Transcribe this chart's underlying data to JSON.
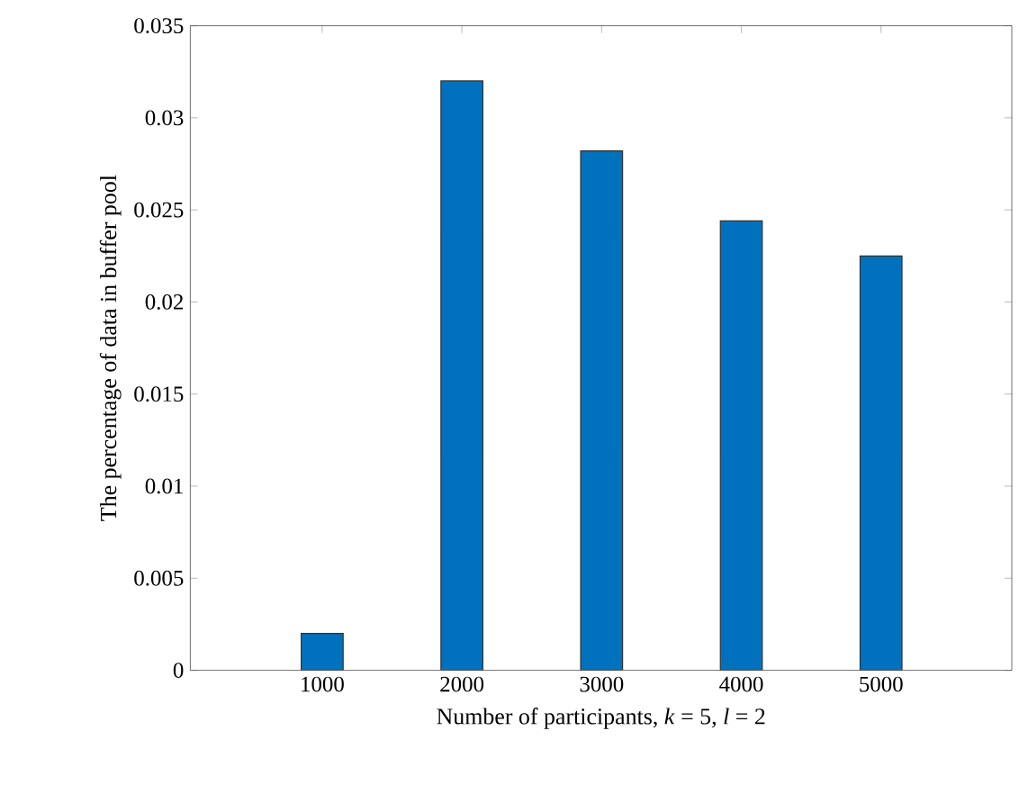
{
  "chart_data": {
    "type": "bar",
    "xlabel": "Number of participants, *k* = 5, *l* = 2",
    "ylabel": "The percentage of data in buffer pool",
    "categories": [
      "1000",
      "2000",
      "3000",
      "4000",
      "5000"
    ],
    "values": [
      0.002,
      0.032,
      0.0282,
      0.0244,
      0.0225
    ],
    "color": "#0072bd",
    "ylim": [
      0,
      0.035
    ],
    "yticks": [
      0,
      0.005,
      0.01,
      0.015,
      0.02,
      0.025,
      0.03,
      0.035
    ],
    "grid": false
  }
}
